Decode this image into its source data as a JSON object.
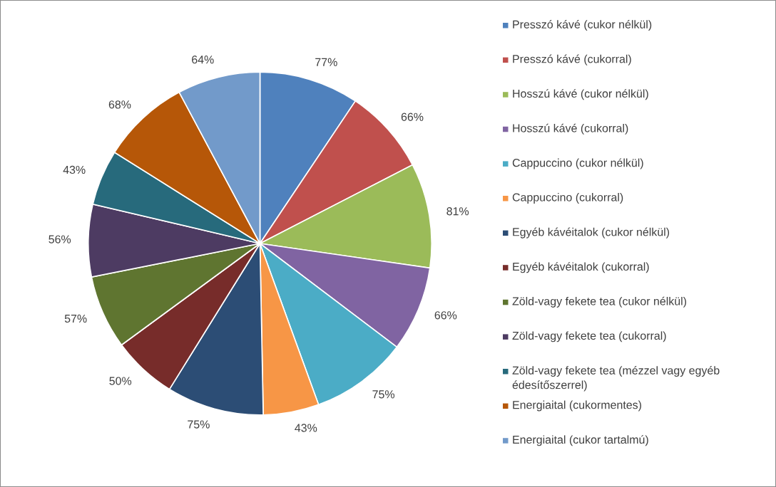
{
  "chart_data": {
    "type": "pie",
    "categories": [
      "Presszó kávé (cukor nélkül)",
      "Presszó kávé (cukorral)",
      "Hosszú kávé (cukor nélkül)",
      "Hosszú kávé (cukorral)",
      "Cappuccino (cukor nélkül)",
      "Cappuccino (cukorral)",
      "Egyéb kávéitalok (cukor nélkül)",
      "Egyéb kávéitalok (cukorral)",
      "Zöld-vagy fekete tea (cukor nélkül)",
      "Zöld-vagy fekete tea (cukorral)",
      "Zöld-vagy fekete tea (mézzel vagy egyéb édesítőszerrel)",
      "Energiaital (cukormentes)",
      "Energiaital (cukor tartalmú)"
    ],
    "values": [
      77,
      66,
      81,
      66,
      75,
      43,
      75,
      50,
      57,
      56,
      43,
      68,
      64
    ],
    "value_labels": [
      "77%",
      "66%",
      "81%",
      "66%",
      "75%",
      "43%",
      "75%",
      "50%",
      "57%",
      "56%",
      "43%",
      "68%",
      "64%"
    ],
    "colors": [
      "#4f81bd",
      "#c0504d",
      "#9bbb59",
      "#8064a2",
      "#4bacc6",
      "#f79646",
      "#2c4d75",
      "#772c2a",
      "#5f7530",
      "#4d3b62",
      "#276a7c",
      "#b65708",
      "#729aca"
    ],
    "legend": "right"
  }
}
